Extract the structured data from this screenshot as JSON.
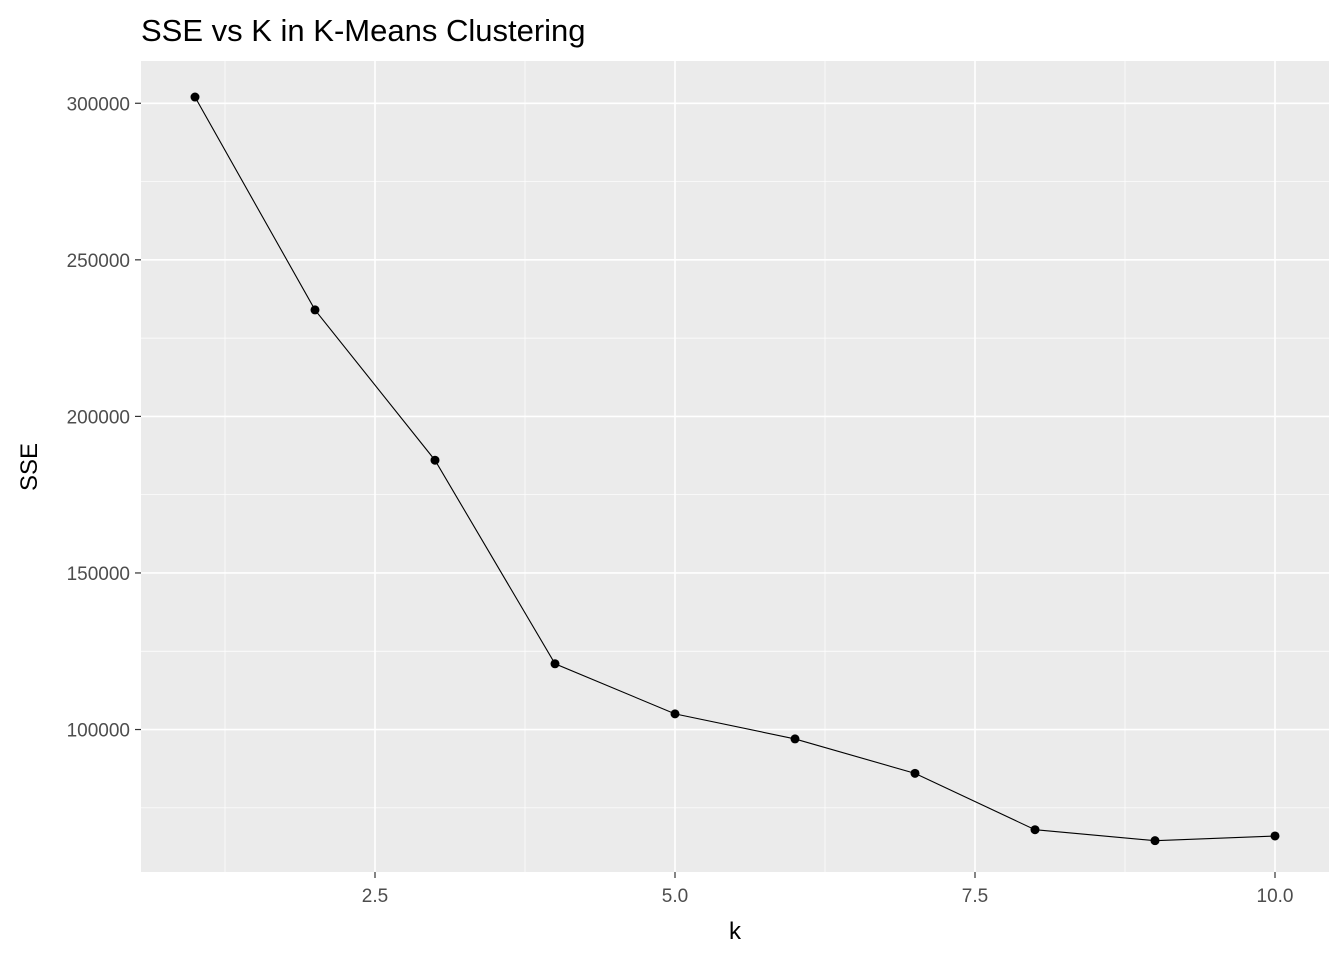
{
  "chart_data": {
    "type": "line",
    "title": "SSE vs K in K-Means Clustering",
    "xlabel": "k",
    "ylabel": "SSE",
    "x": [
      1,
      2,
      3,
      4,
      5,
      6,
      7,
      8,
      9,
      10
    ],
    "series": [
      {
        "values": [
          302000,
          234000,
          186000,
          121000,
          105000,
          97000,
          86000,
          68000,
          64500,
          66000
        ]
      }
    ],
    "xlim": [
      0.55,
      10.45
    ],
    "ylim": [
      54500,
      313500
    ],
    "x_ticks": [
      2.5,
      5.0,
      7.5,
      10.0
    ],
    "x_tick_labels": [
      "2.5",
      "5.0",
      "7.5",
      "10.0"
    ],
    "y_ticks": [
      100000,
      150000,
      200000,
      250000,
      300000
    ],
    "y_tick_labels": [
      "100000",
      "150000",
      "200000",
      "250000",
      "300000"
    ],
    "grid": true,
    "colors": {
      "panel_background": "#EBEBEB",
      "grid_major": "#FFFFFF",
      "line": "#000000",
      "point": "#000000",
      "tick_text": "#4D4D4D",
      "tick_mark": "#333333"
    }
  }
}
